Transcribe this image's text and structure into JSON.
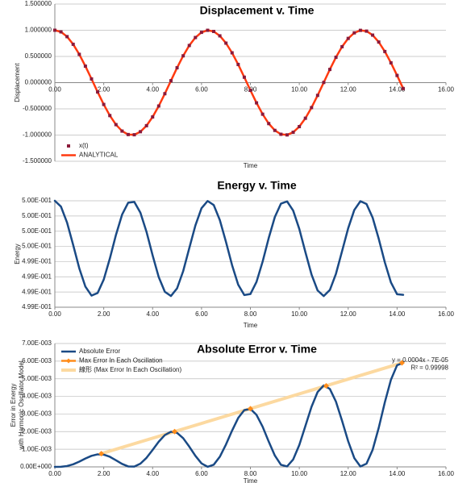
{
  "chart_data": [
    {
      "type": "line",
      "title": "Displacement v. Time",
      "x_label": "Time",
      "y_label": [
        "Displacement"
      ],
      "legend": "lower left",
      "grid": true,
      "x": [
        0,
        0.25,
        0.5,
        0.75,
        1,
        1.25,
        1.5,
        1.75,
        2,
        2.25,
        2.5,
        2.75,
        3,
        3.25,
        3.5,
        3.75,
        4,
        4.25,
        4.5,
        4.75,
        5,
        5.25,
        5.5,
        5.75,
        6,
        6.25,
        6.5,
        6.75,
        7,
        7.25,
        7.5,
        7.75,
        8,
        8.25,
        8.5,
        8.75,
        9,
        9.25,
        9.5,
        9.75,
        10,
        10.25,
        10.5,
        10.75,
        11,
        11.25,
        11.5,
        11.75,
        12,
        12.25,
        12.5,
        12.75,
        13,
        13.25,
        13.5,
        13.75,
        14,
        14.25
      ],
      "series": [
        {
          "name": "x(t)",
          "color": "#8b1a3a",
          "style": "markers",
          "values": [
            1,
            0.969,
            0.878,
            0.732,
            0.54,
            0.315,
            0.071,
            -0.178,
            -0.416,
            -0.628,
            -0.801,
            -0.924,
            -0.99,
            -0.994,
            -0.936,
            -0.821,
            -0.654,
            -0.446,
            -0.211,
            0.037,
            0.284,
            0.512,
            0.709,
            0.861,
            0.96,
            0.999,
            0.977,
            0.893,
            0.754,
            0.569,
            0.347,
            0.104,
            -0.146,
            -0.386,
            -0.602,
            -0.781,
            -0.911,
            -0.985,
            -0.997,
            -0.947,
            -0.839,
            -0.679,
            -0.476,
            -0.243,
            0.004,
            0.252,
            0.484,
            0.686,
            0.844,
            0.95,
            0.998,
            0.983,
            0.907,
            0.775,
            0.594,
            0.378,
            0.137,
            -0.113
          ]
        },
        {
          "name": "ANALYTICAL",
          "color": "#ff3a10",
          "style": "line",
          "values": [
            1,
            0.969,
            0.878,
            0.732,
            0.54,
            0.315,
            0.071,
            -0.178,
            -0.416,
            -0.628,
            -0.801,
            -0.924,
            -0.99,
            -0.994,
            -0.936,
            -0.821,
            -0.654,
            -0.446,
            -0.211,
            0.037,
            0.284,
            0.512,
            0.709,
            0.861,
            0.96,
            0.999,
            0.977,
            0.893,
            0.754,
            0.569,
            0.347,
            0.104,
            -0.146,
            -0.386,
            -0.602,
            -0.781,
            -0.911,
            -0.985,
            -0.997,
            -0.947,
            -0.839,
            -0.679,
            -0.476,
            -0.243,
            0.004,
            0.252,
            0.484,
            0.686,
            0.844,
            0.95,
            0.998,
            0.983,
            0.907,
            0.775,
            0.594,
            0.378,
            0.137,
            -0.113
          ]
        }
      ],
      "xlim": [
        0,
        16
      ],
      "xticks": [
        {
          "value": 0,
          "label": "0.00"
        },
        {
          "value": 2,
          "label": "2.00"
        },
        {
          "value": 4,
          "label": "4.00"
        },
        {
          "value": 6,
          "label": "6.00"
        },
        {
          "value": 8,
          "label": "8.00"
        },
        {
          "value": 10,
          "label": "10.00"
        },
        {
          "value": 12,
          "label": "12.00"
        },
        {
          "value": 14,
          "label": "14.00"
        },
        {
          "value": 16,
          "label": "16.00"
        }
      ],
      "ylim": [
        -1.5,
        1.5
      ],
      "yticks": [
        {
          "value": -1.5,
          "label": "-1.500000"
        },
        {
          "value": -1,
          "label": "-1.000000"
        },
        {
          "value": -0.5,
          "label": "-0.500000"
        },
        {
          "value": 0,
          "label": "0.000000"
        },
        {
          "value": 0.5,
          "label": "0.500000"
        },
        {
          "value": 1,
          "label": "1.000000"
        },
        {
          "value": 1.5,
          "label": "1.500000"
        }
      ]
    },
    {
      "type": "line",
      "title": "Energy v. Time",
      "x_label": "Time",
      "y_label": [
        "Energy"
      ],
      "grid": true,
      "x": [
        0,
        0.25,
        0.5,
        0.75,
        1,
        1.25,
        1.5,
        1.75,
        2,
        2.25,
        2.5,
        2.75,
        3,
        3.25,
        3.5,
        3.75,
        4,
        4.25,
        4.5,
        4.75,
        5,
        5.25,
        5.5,
        5.75,
        6,
        6.25,
        6.5,
        6.75,
        7,
        7.25,
        7.5,
        7.75,
        8,
        8.25,
        8.5,
        8.75,
        9,
        9.25,
        9.5,
        9.75,
        10,
        10.25,
        10.5,
        10.75,
        11,
        11.25,
        11.5,
        11.75,
        12,
        12.25,
        12.5,
        12.75,
        13,
        13.25,
        13.5,
        13.75,
        14,
        14.25
      ],
      "series": [
        {
          "name": "Energy",
          "color": "#1a4a85",
          "style": "line",
          "values": [
            0.5,
            0.499943,
            0.499785,
            0.499564,
            0.499334,
            0.499153,
            0.499065,
            0.49909,
            0.499223,
            0.49943,
            0.499663,
            0.499863,
            0.499981,
            0.499989,
            0.499883,
            0.499694,
            0.499462,
            0.499247,
            0.499102,
            0.499061,
            0.499136,
            0.499306,
            0.499533,
            0.499757,
            0.499927,
            0.499998,
            0.499958,
            0.499809,
            0.499595,
            0.499365,
            0.499173,
            0.49907,
            0.49908,
            0.4992,
            0.4994,
            0.499633,
            0.49984,
            0.499972,
            0.499994,
            0.499903,
            0.499722,
            0.499493,
            0.499273,
            0.499115,
            0.49906,
            0.49912,
            0.49928,
            0.499503,
            0.499729,
            0.499909,
            0.499996,
            0.499968,
            0.499834,
            0.499625,
            0.499392,
            0.499194,
            0.499078,
            0.499072
          ]
        }
      ],
      "xlim": [
        0,
        16
      ],
      "xticks": [
        {
          "value": 0,
          "label": "0.00"
        },
        {
          "value": 2,
          "label": "2.00"
        },
        {
          "value": 4,
          "label": "4.00"
        },
        {
          "value": 6,
          "label": "6.00"
        },
        {
          "value": 8,
          "label": "8.00"
        },
        {
          "value": 10,
          "label": "10.00"
        },
        {
          "value": 12,
          "label": "12.00"
        },
        {
          "value": 14,
          "label": "14.00"
        },
        {
          "value": 16,
          "label": "16.00"
        }
      ],
      "ylim": [
        0.49895,
        0.5
      ],
      "yticks": [
        {
          "value": 0.49895,
          "label": "4.99E-001"
        },
        {
          "value": 0.4991,
          "label": "4.99E-001"
        },
        {
          "value": 0.49925,
          "label": "4.99E-001"
        },
        {
          "value": 0.4994,
          "label": "4.99E-001"
        },
        {
          "value": 0.49955,
          "label": "5.00E-001"
        },
        {
          "value": 0.4997,
          "label": "5.00E-001"
        },
        {
          "value": 0.49985,
          "label": "5.00E-001"
        },
        {
          "value": 0.5,
          "label": "5.00E-001"
        }
      ]
    },
    {
      "type": "line",
      "title": "Absolute Error v. Time",
      "x_label": "Time",
      "y_label": [
        "Error in Energy",
        "with Harmonic Oscillator Model"
      ],
      "legend": "upper left",
      "grid": true,
      "annotations": [
        "y = 0.0004x - 7E-05",
        "R² = 0.99998"
      ],
      "x": [
        0,
        0.25,
        0.5,
        0.75,
        1,
        1.25,
        1.5,
        1.75,
        2,
        2.25,
        2.5,
        2.75,
        3,
        3.25,
        3.5,
        3.75,
        4,
        4.25,
        4.5,
        4.75,
        5,
        5.25,
        5.5,
        5.75,
        6,
        6.25,
        6.5,
        6.75,
        7,
        7.25,
        7.5,
        7.75,
        8,
        8.25,
        8.5,
        8.75,
        9,
        9.25,
        9.5,
        9.75,
        10,
        10.25,
        10.5,
        10.75,
        11,
        11.25,
        11.5,
        11.75,
        12,
        12.25,
        12.5,
        12.75,
        13,
        13.25,
        13.5,
        13.75,
        14,
        14.25
      ],
      "series": [
        {
          "name": "Absolute Error",
          "color": "#1a4a85",
          "style": "line",
          "values": [
            0,
            6e-06,
            4.8e-05,
            0.000146,
            0.000297,
            0.000473,
            0.000627,
            0.000711,
            0.000695,
            0.000573,
            0.000376,
            0.000169,
            2.5e-05,
            1.6e-05,
            0.000182,
            0.000513,
            0.000961,
            0.00143,
            0.001805,
            0.001993,
            0.00193,
            0.001627,
            0.001148,
            0.000625,
            0.000197,
            5e-06,
            0.000123,
            0.000576,
            0.001267,
            0.002058,
            0.002772,
            0.003219,
            0.003289,
            0.002949,
            0.002278,
            0.001433,
            0.000643,
            0.000117,
            2.4e-05,
            0.000422,
            0.001243,
            0.00232,
            0.003409,
            0.004249,
            0.00462,
            0.004423,
            0.0037,
            0.002611,
            0.001452,
            0.000499,
            2.1e-05,
            0.000182,
            0.000966,
            0.00222,
            0.003668,
            0.004949,
            0.005768,
            0.005907
          ]
        },
        {
          "name": "Max Error In Each Oscillation",
          "color": "#ff8c1a",
          "style": "markers",
          "x": [
            1.9,
            4.9,
            8.0,
            11.1,
            14.2
          ],
          "values": [
            0.00075,
            0.002,
            0.0033,
            0.0046,
            0.0059
          ]
        },
        {
          "name": "線形 (Max Error In Each Oscillation)",
          "color": "#fcd9a0",
          "style": "trend",
          "x": [
            1.9,
            14.2
          ],
          "values": [
            0.00075,
            0.0059
          ]
        }
      ],
      "xlim": [
        0,
        16
      ],
      "xticks": [
        {
          "value": 0,
          "label": "0.00"
        },
        {
          "value": 2,
          "label": "2.00"
        },
        {
          "value": 4,
          "label": "4.00"
        },
        {
          "value": 6,
          "label": "6.00"
        },
        {
          "value": 8,
          "label": "8.00"
        },
        {
          "value": 10,
          "label": "10.00"
        },
        {
          "value": 12,
          "label": "12.00"
        },
        {
          "value": 14,
          "label": "14.00"
        },
        {
          "value": 16,
          "label": "16.00"
        }
      ],
      "ylim": [
        0,
        0.007
      ],
      "yticks": [
        {
          "value": 0,
          "label": "0.00E+000"
        },
        {
          "value": 0.001,
          "label": "1.00E-003"
        },
        {
          "value": 0.002,
          "label": "2.00E-003"
        },
        {
          "value": 0.003,
          "label": "3.00E-003"
        },
        {
          "value": 0.004,
          "label": "4.00E-003"
        },
        {
          "value": 0.005,
          "label": "5.00E-003"
        },
        {
          "value": 0.006,
          "label": "6.00E-003"
        },
        {
          "value": 0.007,
          "label": "7.00E-003"
        }
      ]
    }
  ]
}
